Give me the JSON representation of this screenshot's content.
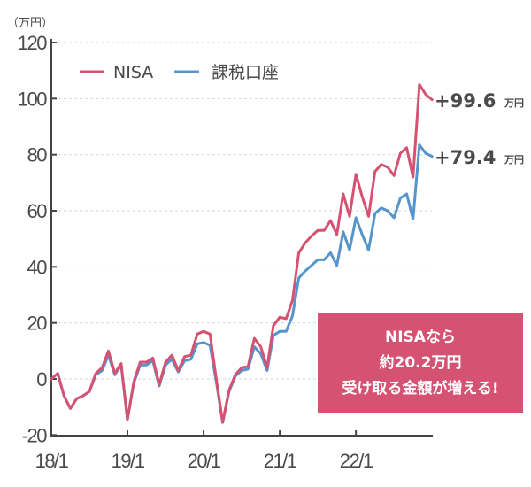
{
  "chart_data": {
    "type": "line",
    "unit_label": "（万円）",
    "ylim": [
      -20,
      120
    ],
    "yticks": [
      "120",
      "100",
      "80",
      "60",
      "40",
      "20",
      "0",
      "-20"
    ],
    "ytick_values": [
      120,
      100,
      80,
      60,
      40,
      20,
      0,
      -20
    ],
    "xticks": [
      "18/1",
      "19/1",
      "20/1",
      "21/1",
      "22/1"
    ],
    "xtick_index": [
      0,
      12,
      24,
      36,
      48
    ],
    "grid": true,
    "legend_position": "top-left",
    "series": [
      {
        "name": "NISA",
        "color": "#d65272",
        "values": [
          0,
          2,
          -6,
          -10.5,
          -7,
          -6,
          -4.5,
          2,
          4,
          10,
          2,
          5.5,
          -14.5,
          -1,
          6,
          6,
          7.5,
          -2,
          6,
          8.5,
          3,
          8,
          8.5,
          16,
          17,
          16,
          0,
          -15.5,
          -4,
          1.5,
          4,
          4.5,
          14.5,
          11.5,
          4,
          19,
          22,
          21.5,
          28,
          45,
          48.5,
          51,
          53,
          53,
          56.5,
          51.5,
          66,
          58,
          73,
          65,
          58,
          74,
          76.5,
          75.5,
          72.5,
          80.5,
          82.5,
          72,
          105,
          101.5,
          99.6
        ]
      },
      {
        "name": "課税口座",
        "color": "#5695cc",
        "values": [
          0,
          2,
          -6,
          -10.5,
          -7,
          -6,
          -4.5,
          1.5,
          3,
          8.5,
          1.5,
          5,
          -14.5,
          -1.5,
          5,
          5,
          6.5,
          -2.5,
          5,
          7,
          2.5,
          6.5,
          7,
          12.5,
          13,
          12,
          -1,
          -15.5,
          -4.5,
          1,
          3,
          3.5,
          11.5,
          9,
          3,
          15.5,
          17,
          17,
          22.5,
          36,
          38.5,
          40.5,
          42.5,
          42.5,
          45,
          40.5,
          52.5,
          46,
          57.5,
          51.5,
          46,
          59,
          61,
          60,
          57.5,
          64.5,
          66,
          57,
          83.5,
          80.5,
          79.4
        ]
      }
    ],
    "end_labels": [
      {
        "series": "NISA",
        "value": "+99.6",
        "unit": "万円"
      },
      {
        "series": "課税口座",
        "value": "+79.4",
        "unit": "万円"
      }
    ],
    "legend": [
      "NISA",
      "課税口座"
    ],
    "annotation": {
      "lines": [
        "NISAなら",
        "約20.2万円",
        "受け取る金額が増える!"
      ],
      "color": "#d65272"
    }
  }
}
